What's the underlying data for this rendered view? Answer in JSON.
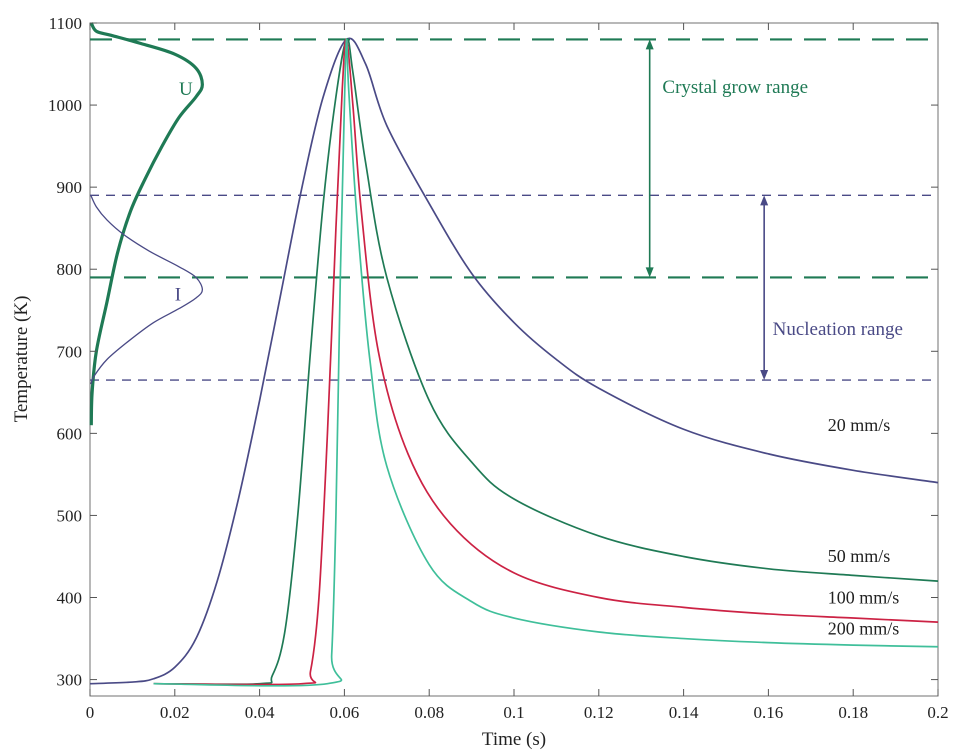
{
  "chart_data": {
    "type": "line",
    "xlabel": "Time (s)",
    "ylabel": "Temperature (K)",
    "xlim": [
      0,
      0.2
    ],
    "ylim": [
      280,
      1100
    ],
    "xticks": [
      0,
      0.02,
      0.04,
      0.06,
      0.08,
      0.1,
      0.12,
      0.14,
      0.16,
      0.18,
      0.2
    ],
    "xtick_labels": [
      "0",
      "0.02",
      "0.04",
      "0.06",
      "0.08",
      "0.1",
      "0.12",
      "0.14",
      "0.16",
      "0.18",
      "0.2"
    ],
    "yticks": [
      300,
      400,
      500,
      600,
      700,
      800,
      900,
      1000,
      1100
    ],
    "ytick_labels": [
      "300",
      "400",
      "500",
      "600",
      "700",
      "800",
      "900",
      "1000",
      "1100"
    ],
    "grid": false,
    "series": [
      {
        "name": "20 mm/s",
        "color": "#4a4a86",
        "points": [
          [
            0,
            295
          ],
          [
            0.01,
            297
          ],
          [
            0.015,
            301
          ],
          [
            0.02,
            315
          ],
          [
            0.025,
            350
          ],
          [
            0.03,
            420
          ],
          [
            0.035,
            520
          ],
          [
            0.04,
            640
          ],
          [
            0.045,
            770
          ],
          [
            0.05,
            900
          ],
          [
            0.055,
            1010
          ],
          [
            0.0605,
            1080
          ],
          [
            0.065,
            1050
          ],
          [
            0.07,
            975
          ],
          [
            0.08,
            880
          ],
          [
            0.09,
            795
          ],
          [
            0.1,
            735
          ],
          [
            0.11,
            690
          ],
          [
            0.12,
            655
          ],
          [
            0.14,
            605
          ],
          [
            0.16,
            575
          ],
          [
            0.18,
            555
          ],
          [
            0.2,
            540
          ]
        ]
      },
      {
        "name": "50 mm/s",
        "color": "#1f7a55",
        "points": [
          [
            0.015,
            295
          ],
          [
            0.04,
            295
          ],
          [
            0.043,
            305
          ],
          [
            0.046,
            360
          ],
          [
            0.049,
            500
          ],
          [
            0.052,
            700
          ],
          [
            0.055,
            880
          ],
          [
            0.058,
            1010
          ],
          [
            0.0605,
            1080
          ],
          [
            0.062,
            1040
          ],
          [
            0.065,
            930
          ],
          [
            0.07,
            790
          ],
          [
            0.08,
            640
          ],
          [
            0.09,
            565
          ],
          [
            0.1,
            520
          ],
          [
            0.12,
            475
          ],
          [
            0.14,
            450
          ],
          [
            0.16,
            435
          ],
          [
            0.18,
            427
          ],
          [
            0.2,
            420
          ]
        ]
      },
      {
        "name": "100 mm/s",
        "color": "#cc2244",
        "points": [
          [
            0.015,
            295
          ],
          [
            0.05,
            295
          ],
          [
            0.052,
            310
          ],
          [
            0.054,
            400
          ],
          [
            0.056,
            600
          ],
          [
            0.058,
            850
          ],
          [
            0.0595,
            1020
          ],
          [
            0.0605,
            1080
          ],
          [
            0.062,
            1000
          ],
          [
            0.064,
            870
          ],
          [
            0.068,
            700
          ],
          [
            0.075,
            575
          ],
          [
            0.085,
            490
          ],
          [
            0.1,
            430
          ],
          [
            0.12,
            400
          ],
          [
            0.14,
            388
          ],
          [
            0.16,
            380
          ],
          [
            0.18,
            375
          ],
          [
            0.2,
            370
          ]
        ]
      },
      {
        "name": "200 mm/s",
        "color": "#3fbf9a",
        "points": [
          [
            0.015,
            295
          ],
          [
            0.056,
            295
          ],
          [
            0.057,
            330
          ],
          [
            0.058,
            500
          ],
          [
            0.059,
            780
          ],
          [
            0.06,
            1000
          ],
          [
            0.0605,
            1080
          ],
          [
            0.061,
            1020
          ],
          [
            0.063,
            860
          ],
          [
            0.066,
            690
          ],
          [
            0.07,
            560
          ],
          [
            0.08,
            440
          ],
          [
            0.09,
            395
          ],
          [
            0.1,
            375
          ],
          [
            0.12,
            358
          ],
          [
            0.14,
            350
          ],
          [
            0.16,
            345
          ],
          [
            0.18,
            342
          ],
          [
            0.2,
            340
          ]
        ]
      }
    ],
    "series_labels": [
      {
        "text": "20 mm/s",
        "x": 0.174,
        "y": 603
      },
      {
        "text": "50 mm/s",
        "x": 0.174,
        "y": 443
      },
      {
        "text": "100 mm/s",
        "x": 0.174,
        "y": 393
      },
      {
        "text": "200 mm/s",
        "x": 0.174,
        "y": 355
      }
    ],
    "overlay_curves": [
      {
        "label": "U",
        "color": "#1f7a55",
        "baseline_x": 0,
        "points": [
          [
            0.0003,
            610
          ],
          [
            0.0005,
            650
          ],
          [
            0.0015,
            700
          ],
          [
            0.004,
            760
          ],
          [
            0.0065,
            820
          ],
          [
            0.0095,
            870
          ],
          [
            0.013,
            910
          ],
          [
            0.017,
            950
          ],
          [
            0.021,
            985
          ],
          [
            0.025,
            1010
          ],
          [
            0.0265,
            1025
          ],
          [
            0.025,
            1045
          ],
          [
            0.02,
            1062
          ],
          [
            0.012,
            1075
          ],
          [
            0.005,
            1085
          ],
          [
            0.0015,
            1090
          ],
          [
            0.0003,
            1100
          ]
        ],
        "label_x": 0.021,
        "label_y": 1012
      },
      {
        "label": "I",
        "color": "#4a4a86",
        "baseline_x": 0,
        "points": [
          [
            0.0002,
            660
          ],
          [
            0.001,
            670
          ],
          [
            0.004,
            690
          ],
          [
            0.009,
            712
          ],
          [
            0.015,
            735
          ],
          [
            0.021,
            752
          ],
          [
            0.025,
            765
          ],
          [
            0.0265,
            775
          ],
          [
            0.025,
            790
          ],
          [
            0.021,
            803
          ],
          [
            0.014,
            822
          ],
          [
            0.008,
            842
          ],
          [
            0.004,
            860
          ],
          [
            0.0015,
            876
          ],
          [
            0.0002,
            890
          ]
        ],
        "label_x": 0.02,
        "label_y": 762
      }
    ],
    "reference_lines": [
      {
        "y": 1080,
        "color": "#1f7a55",
        "style": "long-dash"
      },
      {
        "y": 790,
        "color": "#1f7a55",
        "style": "long-dash"
      },
      {
        "y": 890,
        "color": "#4a4a86",
        "style": "short-dash"
      },
      {
        "y": 665,
        "color": "#4a4a86",
        "style": "short-dash"
      }
    ],
    "annotations": [
      {
        "text": "Crystal grow range",
        "color": "#1f7a55",
        "arrow_x": 0.132,
        "y_from": 790,
        "y_to": 1080,
        "text_x": 0.135,
        "text_y": 1015
      },
      {
        "text": "Nucleation range",
        "color": "#4a4a86",
        "arrow_x": 0.159,
        "y_from": 665,
        "y_to": 890,
        "text_x": 0.161,
        "text_y": 720
      }
    ]
  }
}
